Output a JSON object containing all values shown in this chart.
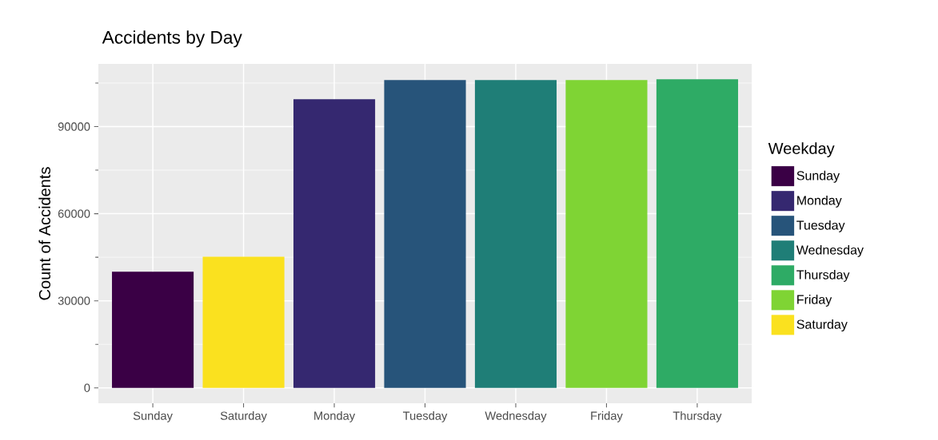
{
  "chart_data": {
    "type": "bar",
    "title": "Accidents by Day",
    "ylabel": "Count of Accidents",
    "legend_title": "Weekday",
    "categories": [
      "Sunday",
      "Saturday",
      "Monday",
      "Tuesday",
      "Wednesday",
      "Friday",
      "Thursday"
    ],
    "series": [
      {
        "name": "Sunday",
        "color": "#3a0045",
        "values": [
          40000,
          null,
          null,
          null,
          null,
          null,
          null
        ]
      },
      {
        "name": "Monday",
        "color": "#352870",
        "values": [
          null,
          null,
          99400,
          null,
          null,
          null,
          null
        ]
      },
      {
        "name": "Tuesday",
        "color": "#27547a",
        "values": [
          null,
          null,
          null,
          106000,
          null,
          null,
          null
        ]
      },
      {
        "name": "Wednesday",
        "color": "#1f7e77",
        "values": [
          null,
          null,
          null,
          null,
          106000,
          null,
          null
        ]
      },
      {
        "name": "Thursday",
        "color": "#2eab65",
        "values": [
          null,
          null,
          null,
          null,
          null,
          null,
          106300
        ]
      },
      {
        "name": "Friday",
        "color": "#7fd434",
        "values": [
          null,
          null,
          null,
          null,
          null,
          106000,
          null
        ]
      },
      {
        "name": "Saturday",
        "color": "#fae11f",
        "values": [
          null,
          45200,
          null,
          null,
          null,
          null,
          null
        ]
      }
    ],
    "ylim": [
      -5300,
      111600
    ],
    "yticks": [
      0,
      30000,
      60000,
      90000
    ],
    "grid": true,
    "legend": "right"
  }
}
